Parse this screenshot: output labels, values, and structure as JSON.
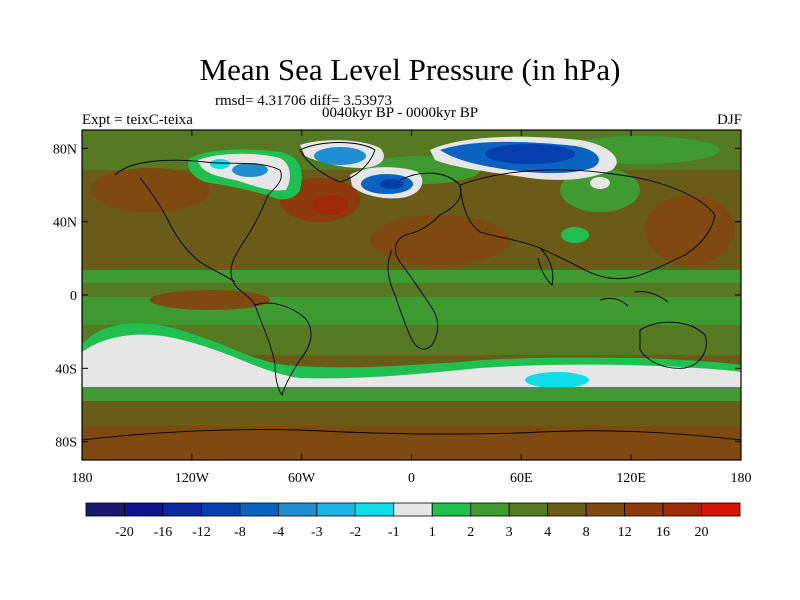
{
  "title": "Mean Sea Level Pressure (in hPa)",
  "stats_text": "rmsd= 4.31706 diff= 3.53973",
  "period": "0040kyr BP - 0000kyr BP",
  "experiment": "Expt = teixC-teixa",
  "season": "DJF",
  "map": {
    "lat_ticks": [
      {
        "label": "80N",
        "lat": 80
      },
      {
        "label": "40N",
        "lat": 40
      },
      {
        "label": "0",
        "lat": 0
      },
      {
        "label": "40S",
        "lat": -40
      },
      {
        "label": "80S",
        "lat": -80
      }
    ],
    "lon_ticks": [
      {
        "label": "180",
        "lon": -180
      },
      {
        "label": "120W",
        "lon": -120
      },
      {
        "label": "60W",
        "lon": -60
      },
      {
        "label": "0",
        "lon": 0
      },
      {
        "label": "60E",
        "lon": 60
      },
      {
        "label": "120E",
        "lon": 120
      },
      {
        "label": "180",
        "lon": 180
      }
    ],
    "lat_range": [
      -90,
      90
    ],
    "lon_range": [
      -180,
      180
    ]
  },
  "colorbar": {
    "colors": [
      "#1c1a6e",
      "#11128e",
      "#0a2a9e",
      "#083fae",
      "#0a63c0",
      "#1e8ed0",
      "#18b5e0",
      "#10dde8",
      "#e6e6e6",
      "#20c050",
      "#3f9a32",
      "#557a22",
      "#6a5c18",
      "#7e4a10",
      "#8e3a0a",
      "#a02a08",
      "#d41408"
    ],
    "labels": [
      "-20",
      "-16",
      "-12",
      "-8",
      "-4",
      "-3",
      "-2",
      "-1",
      "1",
      "2",
      "3",
      "4",
      "8",
      "12",
      "16",
      "20"
    ]
  }
}
